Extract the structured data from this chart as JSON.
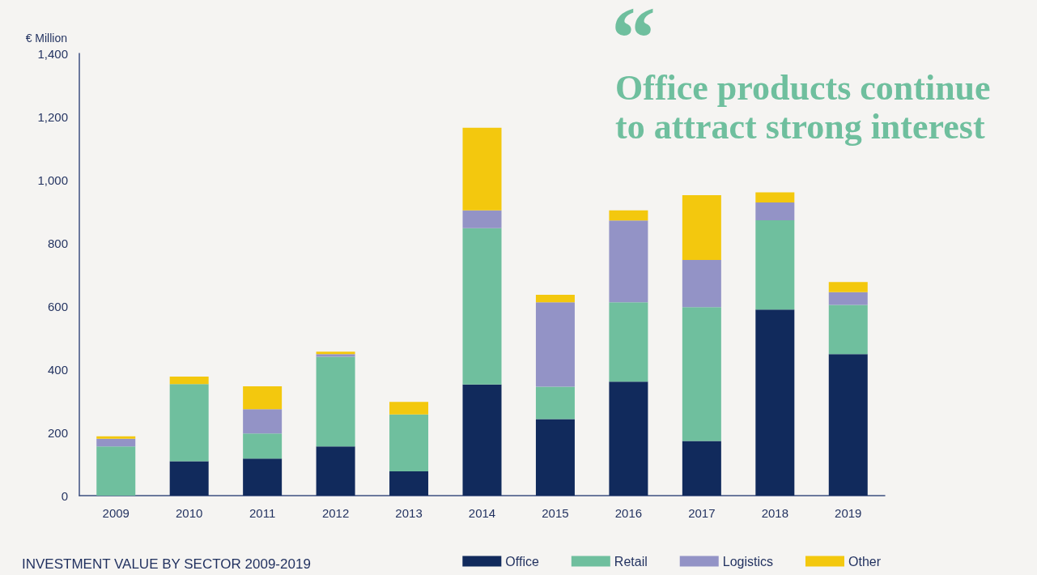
{
  "chart_data": {
    "type": "bar",
    "title": "INVESTMENT VALUE BY SECTOR 2009-2019",
    "ylabel": "€ Million",
    "annotations": [
      "“",
      "Office products continue to attract strong interest"
    ],
    "categories": [
      "2009",
      "2010",
      "2011",
      "2012",
      "2013",
      "2014",
      "2015",
      "2016",
      "2017",
      "2018",
      "2019"
    ],
    "series": [
      {
        "name": "Office",
        "color": "#112a5c",
        "values": [
          0,
          109,
          117,
          156,
          77,
          352,
          242,
          361,
          173,
          589,
          448
        ]
      },
      {
        "name": "Retail",
        "color": "#6fbf9e",
        "values": [
          156,
          244,
          80,
          284,
          180,
          495,
          103,
          251,
          424,
          283,
          156
        ]
      },
      {
        "name": "Logistics",
        "color": "#9393c6",
        "values": [
          24,
          0,
          77,
          8,
          0,
          56,
          267,
          259,
          149,
          56,
          40
        ]
      },
      {
        "name": "Other",
        "color": "#f3c80e",
        "values": [
          8,
          24,
          72,
          8,
          40,
          262,
          24,
          32,
          205,
          32,
          32
        ]
      }
    ],
    "stacked": true,
    "ylim": [
      0,
      1400
    ],
    "yticks": [
      0,
      200,
      400,
      600,
      800,
      {
        "value": 1000,
        "label": "1,000"
      },
      {
        "value": 1200,
        "label": "1,200"
      },
      {
        "value": 1400,
        "label": "1,400"
      }
    ],
    "grid": false,
    "legend": "bottom right"
  }
}
